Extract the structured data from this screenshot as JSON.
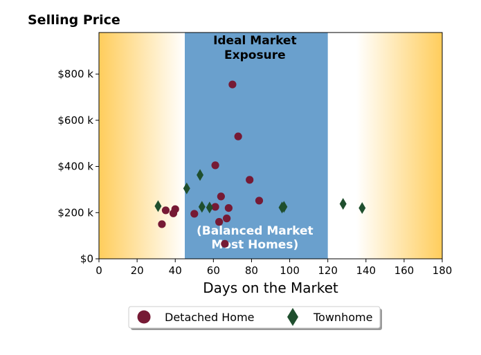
{
  "chart_data": {
    "type": "scatter",
    "title": "Selling Price",
    "xlabel": "Days on the Market",
    "ylabel": "",
    "xlim": [
      0,
      180
    ],
    "ylim": [
      0,
      980
    ],
    "x_ticks": [
      0,
      20,
      40,
      60,
      80,
      100,
      120,
      140,
      160,
      180
    ],
    "y_ticks": [
      0,
      200,
      400,
      600,
      800
    ],
    "y_tick_labels": [
      "$0",
      "$200 k",
      "$400 k",
      "$600 k",
      "$800 k"
    ],
    "grid": false,
    "legend_position": "bottom-center",
    "highlight_band": {
      "x_range": [
        45,
        120
      ],
      "title_lines": [
        "Ideal Market",
        "Exposure"
      ],
      "note_lines": [
        "(Balanced Market",
        "Most Homes)"
      ],
      "color": "#6aa0cd"
    },
    "background_gradient": {
      "edge_color": "#ffcd5c",
      "center_color": "#ffffff"
    },
    "series": [
      {
        "name": "Detached Home",
        "marker": "circle",
        "color": "#761a35",
        "points": [
          [
            33,
            150
          ],
          [
            35,
            210
          ],
          [
            39,
            197
          ],
          [
            40,
            215
          ],
          [
            50,
            195
          ],
          [
            61,
            405
          ],
          [
            61,
            225
          ],
          [
            63,
            160
          ],
          [
            64,
            270
          ],
          [
            66,
            65
          ],
          [
            67,
            175
          ],
          [
            68,
            220
          ],
          [
            70,
            755
          ],
          [
            73,
            530
          ],
          [
            79,
            342
          ],
          [
            84,
            252
          ]
        ]
      },
      {
        "name": "Townhome",
        "marker": "diamond",
        "color": "#1f4f2e",
        "points": [
          [
            31,
            228
          ],
          [
            46,
            305
          ],
          [
            53,
            363
          ],
          [
            54,
            225
          ],
          [
            58,
            222
          ],
          [
            96,
            222
          ],
          [
            97,
            225
          ],
          [
            128,
            238
          ],
          [
            138,
            220
          ]
        ]
      }
    ]
  }
}
